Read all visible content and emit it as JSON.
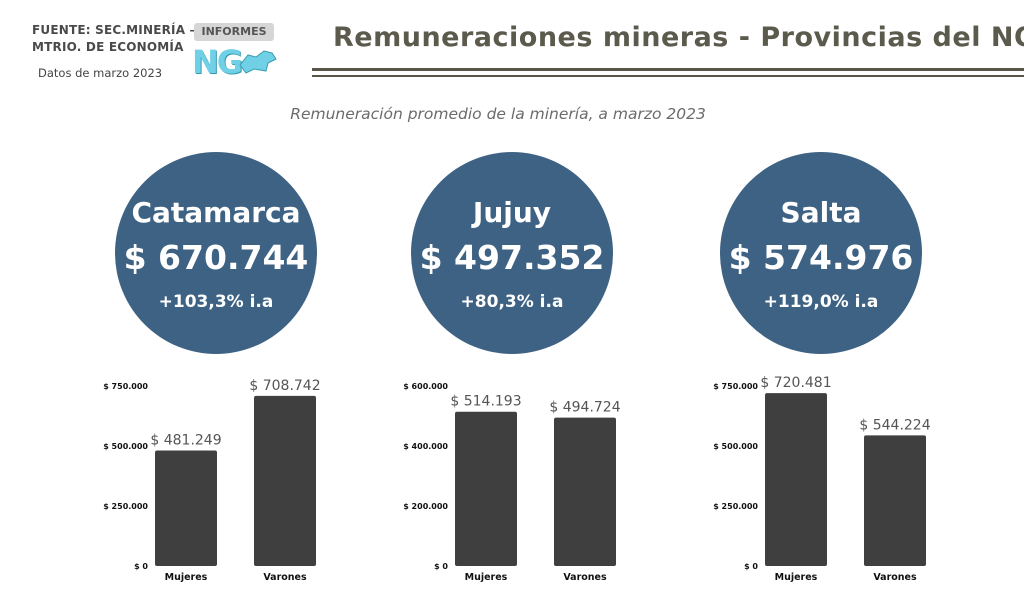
{
  "header": {
    "source_line1": "FUENTE: SEC.MINERÍA –",
    "source_line2": "MTRIO. DE ECONOMÍA",
    "date": "Datos de  marzo 2023",
    "logo_word": "INFORMES",
    "logo_mark": "NG",
    "title": "Remuneraciones mineras - Provincias del NOA"
  },
  "subtitle": "Remuneración promedio de la minería, a marzo 2023",
  "provinces": [
    {
      "name": "Catamarca",
      "amount": "$ 670.744",
      "change": "+103,3% i.a"
    },
    {
      "name": "Jujuy",
      "amount": "$ 497.352",
      "change": "+80,3% i.a"
    },
    {
      "name": "Salta",
      "amount": "$ 574.976",
      "change": "+119,0% i.a"
    }
  ],
  "colors": {
    "circle": "#3e6283",
    "bar": "#3f3f40",
    "title": "#5b5a4c"
  },
  "chart_data": [
    {
      "type": "bar",
      "categories": [
        "Mujeres",
        "Varones"
      ],
      "values": [
        481249,
        708742
      ],
      "data_labels": [
        "$ 481.249",
        "$ 708.742"
      ],
      "ylim": [
        0,
        750000
      ],
      "yticks": [
        0,
        250000,
        500000,
        750000
      ],
      "ytick_labels": [
        "$ 0",
        "$ 250.000",
        "$ 500.000",
        "$ 750.000"
      ]
    },
    {
      "type": "bar",
      "categories": [
        "Mujeres",
        "Varones"
      ],
      "values": [
        514193,
        494724
      ],
      "data_labels": [
        "$ 514.193",
        "$ 494.724"
      ],
      "ylim": [
        0,
        600000
      ],
      "yticks": [
        0,
        200000,
        400000,
        600000
      ],
      "ytick_labels": [
        "$ 0",
        "$ 200.000",
        "$ 400.000",
        "$ 600.000"
      ]
    },
    {
      "type": "bar",
      "categories": [
        "Mujeres",
        "Varones"
      ],
      "values": [
        720481,
        544224
      ],
      "data_labels": [
        "$ 720.481",
        "$ 544.224"
      ],
      "ylim": [
        0,
        750000
      ],
      "yticks": [
        0,
        250000,
        500000,
        750000
      ],
      "ytick_labels": [
        "$ 0",
        "$ 250.000",
        "$ 500.000",
        "$ 750.000"
      ]
    }
  ]
}
